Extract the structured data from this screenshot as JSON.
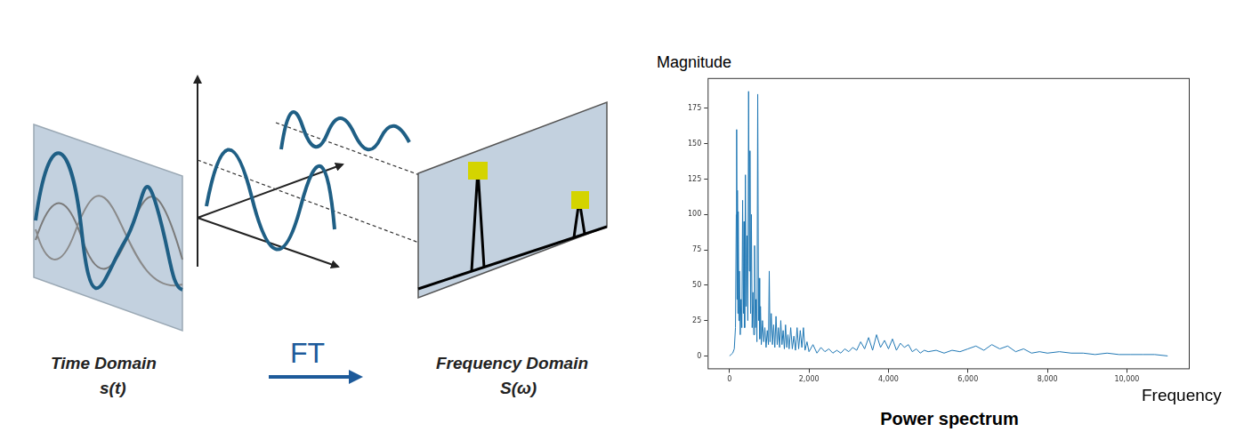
{
  "diagram": {
    "time_domain": {
      "label": "Time Domain",
      "symbol": "s(t)"
    },
    "transform": "FT",
    "frequency_domain": {
      "label": "Frequency Domain",
      "symbol": "S(ω)"
    }
  },
  "chart_data": {
    "type": "line",
    "title": "Power spectrum",
    "x_label": "Frequency",
    "y_label": "Magnitude",
    "x": [
      0,
      40,
      80,
      120,
      150,
      170,
      180,
      190,
      200,
      210,
      220,
      235,
      250,
      270,
      290,
      310,
      330,
      350,
      365,
      380,
      400,
      420,
      440,
      460,
      480,
      500,
      515,
      530,
      550,
      570,
      590,
      610,
      630,
      650,
      670,
      690,
      710,
      730,
      745,
      760,
      780,
      800,
      830,
      860,
      890,
      920,
      950,
      980,
      1000,
      1020,
      1050,
      1080,
      1110,
      1140,
      1170,
      1200,
      1230,
      1260,
      1290,
      1320,
      1350,
      1380,
      1410,
      1440,
      1470,
      1500,
      1540,
      1580,
      1620,
      1660,
      1700,
      1740,
      1780,
      1820,
      1860,
      1900,
      1950,
      2000,
      2100,
      2200,
      2300,
      2400,
      2500,
      2600,
      2700,
      2800,
      2900,
      3000,
      3100,
      3200,
      3300,
      3400,
      3500,
      3600,
      3700,
      3800,
      3900,
      4000,
      4100,
      4200,
      4300,
      4400,
      4500,
      4600,
      4700,
      4800,
      4900,
      5000,
      5200,
      5400,
      5600,
      5800,
      6000,
      6200,
      6400,
      6600,
      6800,
      7000,
      7200,
      7400,
      7600,
      7800,
      8000,
      8300,
      8600,
      8900,
      9200,
      9500,
      9800,
      10100,
      10400,
      10700,
      11025
    ],
    "values": [
      0,
      1,
      2,
      5,
      20,
      100,
      160,
      40,
      117,
      30,
      102,
      25,
      60,
      15,
      40,
      20,
      110,
      30,
      95,
      20,
      128,
      35,
      85,
      25,
      187,
      60,
      145,
      30,
      100,
      20,
      45,
      15,
      78,
      20,
      40,
      10,
      185,
      25,
      55,
      12,
      35,
      8,
      25,
      10,
      20,
      6,
      18,
      8,
      60,
      10,
      30,
      8,
      22,
      6,
      28,
      8,
      20,
      6,
      25,
      8,
      18,
      5,
      22,
      6,
      15,
      5,
      20,
      5,
      14,
      4,
      20,
      5,
      18,
      6,
      20,
      4,
      10,
      3,
      8,
      2,
      6,
      3,
      5,
      2,
      4,
      2,
      5,
      3,
      6,
      4,
      10,
      5,
      13,
      4,
      15,
      6,
      11,
      5,
      12,
      4,
      9,
      6,
      8,
      3,
      5,
      2,
      4,
      3,
      4,
      2,
      4,
      3,
      5,
      7,
      4,
      8,
      5,
      7,
      3,
      5,
      2,
      3,
      2,
      3,
      2,
      2,
      1,
      2,
      1,
      1,
      1,
      1,
      0
    ],
    "color": "#1f77b4",
    "xlim": [
      -550,
      11580
    ],
    "ylim": [
      -9.4,
      196.4
    ],
    "xticks": [
      0,
      2000,
      4000,
      6000,
      8000,
      10000
    ],
    "yticks": [
      0,
      25,
      50,
      75,
      100,
      125,
      150,
      175
    ],
    "grid": false
  }
}
